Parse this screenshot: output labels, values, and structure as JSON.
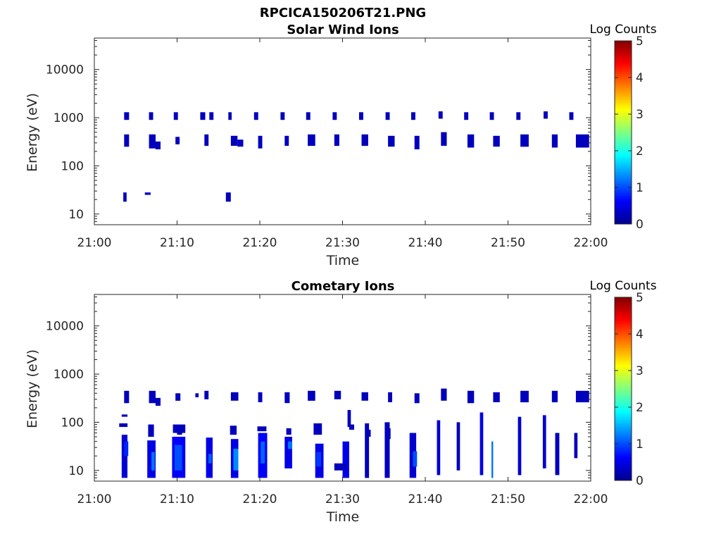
{
  "figure_title": "RPCICA150206T21.PNG",
  "colors": {
    "low": "#00008f",
    "mid": "#0050ff",
    "frame": "#262626"
  },
  "chart_data": [
    {
      "type": "heatmap",
      "title": "Solar Wind Ions",
      "xlabel": "Time",
      "ylabel": "Energy (eV)",
      "x_ticks": [
        "21:00",
        "21:10",
        "21:20",
        "21:30",
        "21:40",
        "21:50",
        "22:00"
      ],
      "xlim_minutes": [
        0,
        60
      ],
      "y_ticks": [
        "10",
        "100",
        "1000",
        "10000"
      ],
      "y_scale": "log",
      "ylim": [
        6,
        45000
      ],
      "colorbar": {
        "label": "Log Counts",
        "ticks": [
          "0",
          "1",
          "2",
          "3",
          "4",
          "5"
        ],
        "range": [
          0,
          5
        ],
        "colormap": "jet"
      },
      "cells": [
        [
          3.5,
          3.9,
          18,
          28,
          0.3
        ],
        [
          6.1,
          6.8,
          25,
          28,
          0.3
        ],
        [
          15.9,
          16.5,
          18,
          28,
          0.3
        ],
        [
          3.6,
          4.2,
          900,
          1300,
          0.3
        ],
        [
          6.6,
          7.1,
          900,
          1300,
          0.3
        ],
        [
          9.6,
          10.1,
          900,
          1300,
          0.3
        ],
        [
          12.8,
          13.4,
          900,
          1300,
          0.3
        ],
        [
          13.9,
          14.4,
          900,
          1300,
          0.3
        ],
        [
          16.2,
          16.6,
          900,
          1300,
          0.3
        ],
        [
          19.3,
          19.8,
          900,
          1300,
          0.3
        ],
        [
          22.5,
          23.0,
          900,
          1300,
          0.3
        ],
        [
          25.6,
          26.1,
          900,
          1300,
          0.3
        ],
        [
          28.8,
          29.3,
          900,
          1300,
          0.3
        ],
        [
          32.0,
          32.5,
          900,
          1300,
          0.3
        ],
        [
          35.2,
          35.7,
          900,
          1300,
          0.3
        ],
        [
          38.3,
          38.8,
          900,
          1300,
          0.3
        ],
        [
          41.6,
          42.1,
          950,
          1350,
          0.3
        ],
        [
          44.7,
          45.2,
          900,
          1300,
          0.3
        ],
        [
          47.8,
          48.3,
          900,
          1300,
          0.3
        ],
        [
          51.0,
          51.5,
          900,
          1300,
          0.3
        ],
        [
          54.3,
          54.8,
          950,
          1350,
          0.3
        ],
        [
          57.4,
          57.9,
          900,
          1300,
          0.3
        ],
        [
          3.6,
          4.2,
          250,
          450,
          0.3
        ],
        [
          6.6,
          7.4,
          230,
          450,
          0.3
        ],
        [
          7.4,
          8.0,
          220,
          320,
          0.3
        ],
        [
          9.8,
          10.3,
          280,
          400,
          0.3
        ],
        [
          13.3,
          13.8,
          260,
          450,
          0.3
        ],
        [
          16.5,
          17.3,
          260,
          420,
          0.3
        ],
        [
          17.3,
          18.0,
          250,
          350,
          0.3
        ],
        [
          19.8,
          20.3,
          230,
          420,
          0.3
        ],
        [
          23.0,
          23.5,
          260,
          420,
          0.3
        ],
        [
          25.8,
          26.7,
          260,
          450,
          0.3
        ],
        [
          29.0,
          29.6,
          260,
          450,
          0.3
        ],
        [
          32.3,
          33.1,
          260,
          450,
          0.3
        ],
        [
          35.5,
          36.3,
          250,
          420,
          0.3
        ],
        [
          38.7,
          39.3,
          220,
          420,
          0.3
        ],
        [
          41.9,
          42.6,
          260,
          500,
          0.3
        ],
        [
          45.1,
          45.9,
          240,
          450,
          0.3
        ],
        [
          48.2,
          49.0,
          250,
          420,
          0.3
        ],
        [
          51.5,
          52.5,
          250,
          450,
          0.3
        ],
        [
          55.3,
          56.0,
          240,
          450,
          0.3
        ],
        [
          58.2,
          59.8,
          240,
          450,
          0.3
        ]
      ]
    },
    {
      "type": "heatmap",
      "title": "Cometary Ions",
      "xlabel": "Time",
      "ylabel": "Energy (eV)",
      "x_ticks": [
        "21:00",
        "21:10",
        "21:20",
        "21:30",
        "21:40",
        "21:50",
        "22:00"
      ],
      "xlim_minutes": [
        0,
        60
      ],
      "y_ticks": [
        "10",
        "100",
        "1000",
        "10000"
      ],
      "y_scale": "log",
      "ylim": [
        6,
        45000
      ],
      "colorbar": {
        "label": "Log Counts",
        "ticks": [
          "0",
          "1",
          "2",
          "3",
          "4",
          "5"
        ],
        "range": [
          0,
          5
        ],
        "colormap": "jet"
      },
      "cells": [
        [
          3.6,
          4.2,
          250,
          450,
          0.3
        ],
        [
          6.6,
          7.4,
          250,
          450,
          0.3
        ],
        [
          7.4,
          8.0,
          220,
          320,
          0.3
        ],
        [
          9.8,
          10.4,
          280,
          400,
          0.3
        ],
        [
          12.2,
          12.6,
          330,
          400,
          0.3
        ],
        [
          13.3,
          13.8,
          300,
          450,
          0.3
        ],
        [
          16.5,
          17.4,
          280,
          420,
          0.3
        ],
        [
          19.8,
          20.3,
          260,
          420,
          0.3
        ],
        [
          23.0,
          23.6,
          250,
          420,
          0.3
        ],
        [
          25.8,
          26.7,
          280,
          450,
          0.3
        ],
        [
          29.0,
          29.8,
          300,
          450,
          0.3
        ],
        [
          32.3,
          33.1,
          280,
          420,
          0.3
        ],
        [
          35.5,
          36.0,
          260,
          420,
          0.3
        ],
        [
          38.7,
          39.3,
          250,
          400,
          0.3
        ],
        [
          41.9,
          42.6,
          280,
          500,
          0.3
        ],
        [
          45.1,
          45.9,
          250,
          450,
          0.3
        ],
        [
          48.2,
          49.0,
          260,
          420,
          0.3
        ],
        [
          51.5,
          52.5,
          260,
          450,
          0.3
        ],
        [
          55.3,
          56.0,
          260,
          450,
          0.3
        ],
        [
          58.2,
          59.8,
          260,
          450,
          0.3
        ],
        [
          3.0,
          4.0,
          80,
          95,
          0.3
        ],
        [
          3.3,
          4.0,
          130,
          145,
          0.3
        ],
        [
          3.3,
          4.0,
          7,
          55,
          0.4
        ],
        [
          3.6,
          4.1,
          20,
          40,
          0.8
        ],
        [
          6.5,
          7.2,
          50,
          90,
          0.3
        ],
        [
          6.4,
          7.4,
          7,
          42,
          0.5
        ],
        [
          6.9,
          7.3,
          10,
          24,
          1.2
        ],
        [
          9.4,
          11.0,
          7,
          50,
          0.6
        ],
        [
          9.7,
          10.6,
          10,
          34,
          1.0
        ],
        [
          9.5,
          11.0,
          60,
          90,
          0.3
        ],
        [
          10.0,
          10.6,
          55,
          70,
          0.3
        ],
        [
          13.5,
          14.3,
          7,
          48,
          0.5
        ],
        [
          13.8,
          14.2,
          14,
          22,
          1.1
        ],
        [
          16.5,
          17.4,
          7,
          45,
          0.5
        ],
        [
          16.8,
          17.4,
          10,
          28,
          1.3
        ],
        [
          16.4,
          17.2,
          55,
          85,
          0.3
        ],
        [
          19.8,
          20.9,
          7,
          60,
          0.6
        ],
        [
          20.1,
          20.6,
          14,
          40,
          1.1
        ],
        [
          19.7,
          20.8,
          65,
          82,
          0.3
        ],
        [
          23.0,
          23.9,
          11,
          50,
          0.5
        ],
        [
          23.4,
          23.9,
          28,
          40,
          1.2
        ],
        [
          23.2,
          23.8,
          55,
          75,
          0.3
        ],
        [
          26.7,
          27.7,
          7,
          36,
          0.5
        ],
        [
          26.8,
          27.4,
          12,
          24,
          0.9
        ],
        [
          26.5,
          27.5,
          55,
          95,
          0.3
        ],
        [
          30.0,
          30.8,
          7,
          40,
          0.5
        ],
        [
          29.0,
          30.5,
          10,
          14,
          0.3
        ],
        [
          30.6,
          31.0,
          80,
          180,
          0.3
        ],
        [
          30.8,
          31.4,
          70,
          90,
          0.3
        ],
        [
          32.7,
          33.2,
          7,
          95,
          0.3
        ],
        [
          32.9,
          33.4,
          50,
          70,
          0.3
        ],
        [
          35.1,
          35.7,
          7,
          100,
          0.3
        ],
        [
          35.3,
          35.8,
          45,
          75,
          0.3
        ],
        [
          38.1,
          38.9,
          7,
          60,
          0.4
        ],
        [
          38.5,
          39.0,
          12,
          25,
          1.0
        ],
        [
          41.4,
          41.8,
          8,
          110,
          0.4
        ],
        [
          43.8,
          44.2,
          10,
          100,
          0.3
        ],
        [
          46.6,
          47.0,
          8,
          160,
          0.5
        ],
        [
          48.0,
          48.2,
          7,
          40,
          1.2
        ],
        [
          51.2,
          51.6,
          8,
          130,
          0.4
        ],
        [
          54.2,
          54.6,
          11,
          140,
          0.4
        ],
        [
          55.7,
          56.2,
          8,
          60,
          0.3
        ],
        [
          58.0,
          58.4,
          18,
          60,
          0.3
        ]
      ]
    }
  ]
}
